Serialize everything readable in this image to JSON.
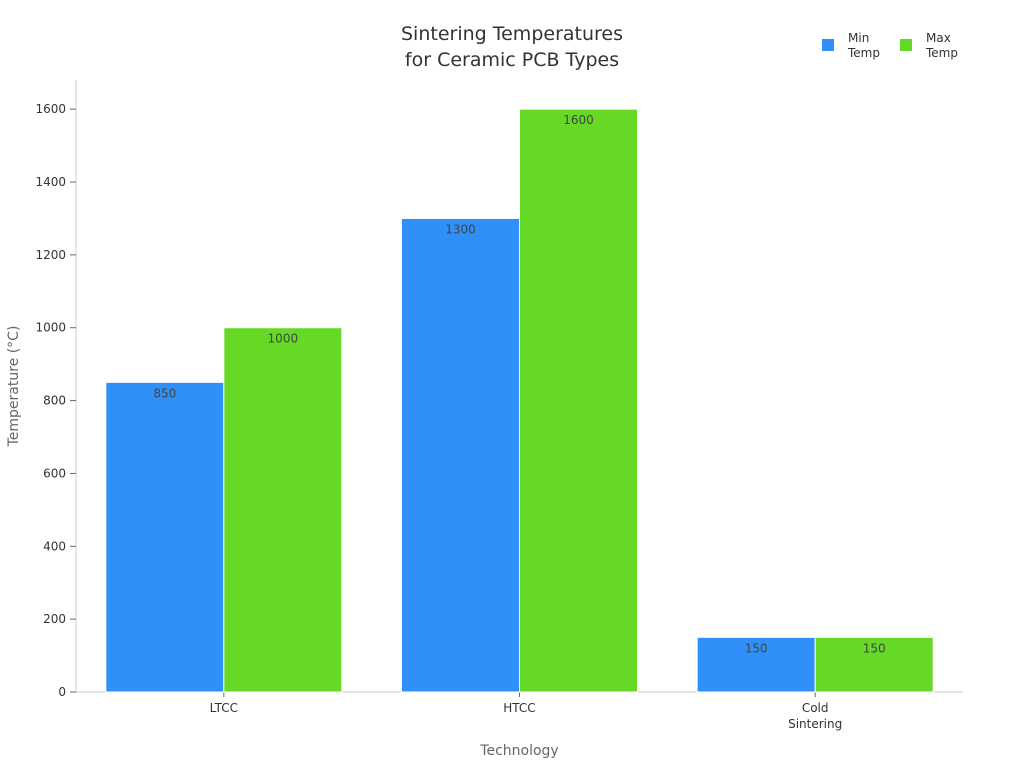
{
  "chart_data": {
    "type": "bar",
    "title": [
      "Sintering Temperatures",
      "for Ceramic PCB Types"
    ],
    "xlabel": "Technology",
    "ylabel": "Temperature (°C)",
    "categories": [
      [
        "LTCC"
      ],
      [
        "HTCC"
      ],
      [
        "Cold",
        "Sintering"
      ]
    ],
    "series": [
      {
        "name": [
          "Min",
          "Temp"
        ],
        "values": [
          850,
          1300,
          150
        ],
        "color": "#2e90f8"
      },
      {
        "name": [
          "Max",
          "Temp"
        ],
        "values": [
          1000,
          1600,
          150
        ],
        "color": "#66d926"
      }
    ],
    "ylim": [
      0,
      1680
    ],
    "yticks": [
      0,
      200,
      400,
      600,
      800,
      1000,
      1200,
      1400,
      1600
    ],
    "legend_position": "top-right",
    "grid": false
  }
}
